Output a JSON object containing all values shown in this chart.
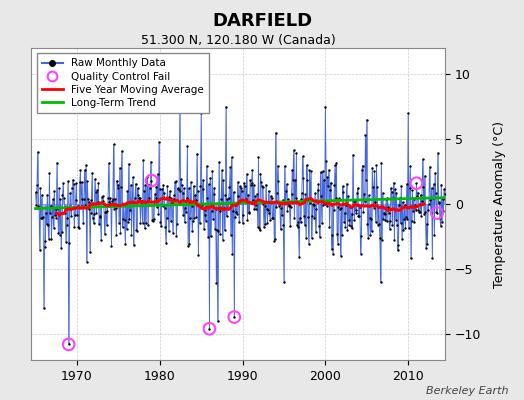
{
  "title": "DARFIELD",
  "subtitle": "51.300 N, 120.180 W (Canada)",
  "ylabel": "Temperature Anomaly (°C)",
  "xlabel_credit": "Berkeley Earth",
  "ylim": [
    -12,
    12
  ],
  "yticks": [
    -10,
    -5,
    0,
    5,
    10
  ],
  "start_year": 1965.0,
  "end_year": 2014.5,
  "bg_color": "#e8e8e8",
  "plot_bg_color": "#ffffff",
  "raw_line_color": "#4466dd",
  "raw_dot_color": "#000000",
  "moving_avg_color": "#ff0000",
  "trend_color": "#00bb00",
  "qc_color": "#ff44ff",
  "legend_loc": "upper left",
  "seed": 42,
  "n_months": 594,
  "qc_fail_indices": [
    48,
    168,
    252,
    288,
    552,
    582
  ],
  "qc_fail_values": [
    -10.8,
    1.8,
    -9.6,
    -8.7,
    1.6,
    -0.7
  ]
}
